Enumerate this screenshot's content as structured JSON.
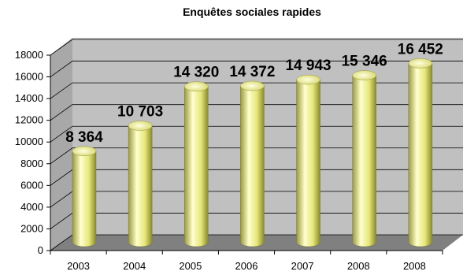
{
  "chart_data": {
    "type": "bar",
    "title": "Enquêtes sociales rapides",
    "categories": [
      "2003",
      "2004",
      "2005",
      "2006",
      "2007",
      "2008",
      "2008"
    ],
    "values": [
      8364,
      10703,
      14320,
      14372,
      14943,
      15346,
      16452
    ],
    "value_labels": [
      "8 364",
      "10 703",
      "14 320",
      "14 372",
      "14 943",
      "15 346",
      "16 452"
    ],
    "ylim": [
      0,
      18000
    ],
    "yticks": [
      "0",
      "2000",
      "4000",
      "6000",
      "8000",
      "10000",
      "12000",
      "14000",
      "16000",
      "18000"
    ],
    "grid": true,
    "legend": "none",
    "colors": {
      "wall": "#c0c0c0",
      "floor": "#808080",
      "bar_light": "#ffffcc",
      "bar_mid": "#eeee88",
      "bar_dark": "#888833",
      "grid": "#000000"
    }
  }
}
